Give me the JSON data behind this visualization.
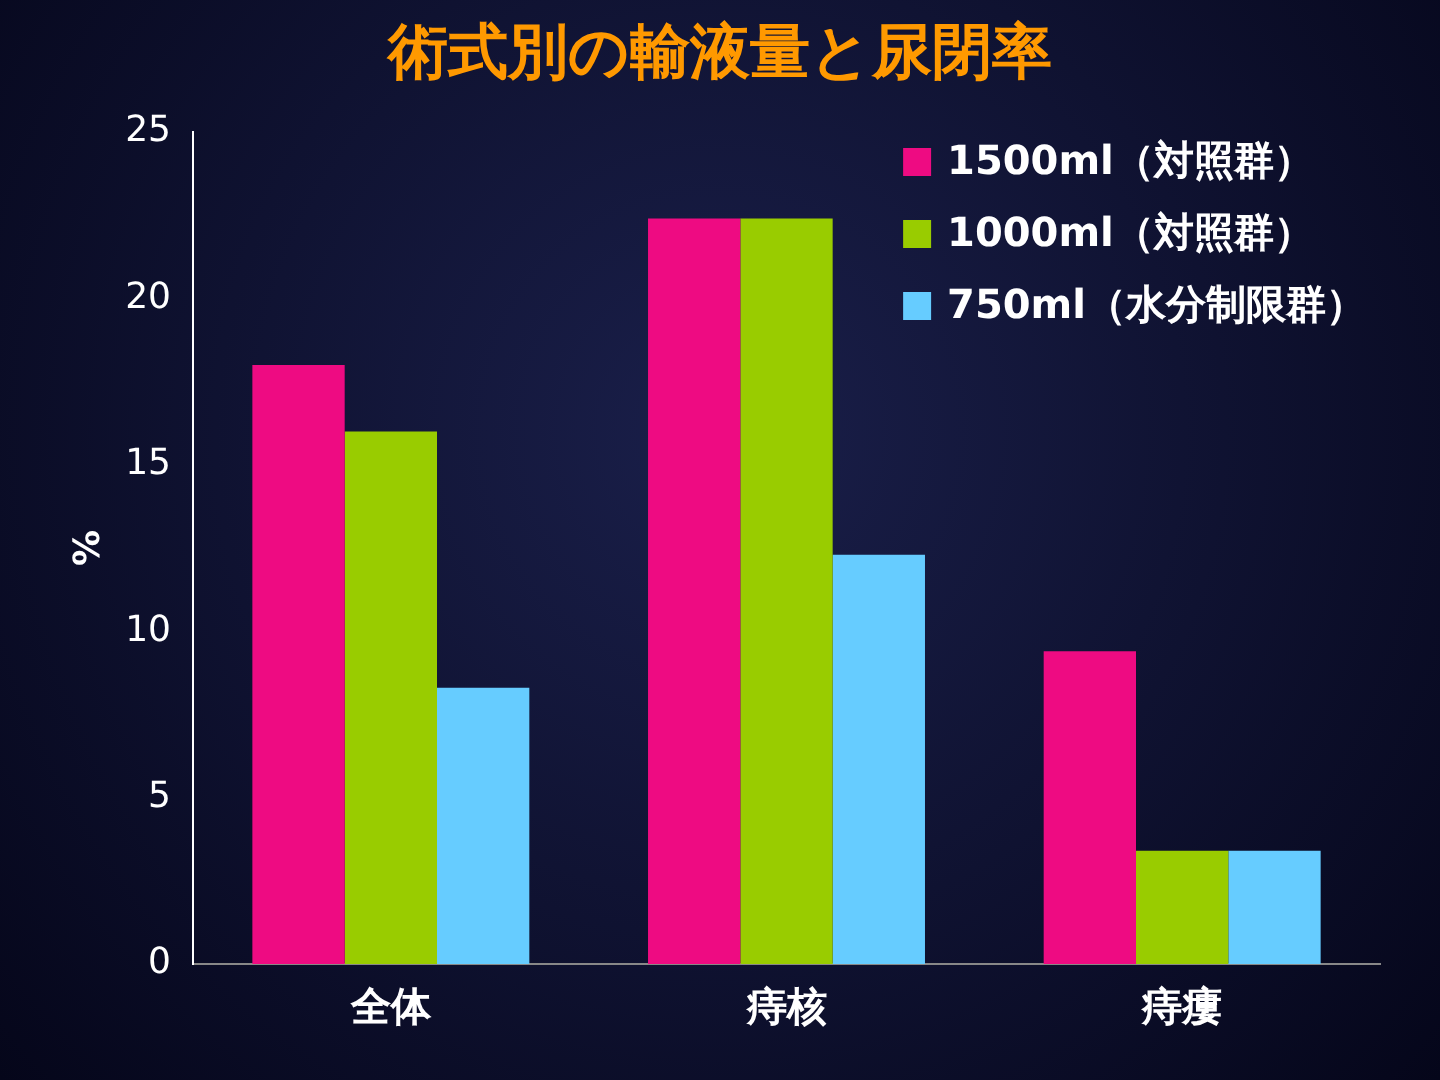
{
  "chart_data": {
    "type": "bar",
    "title": "術式別の輸液量と尿閉率",
    "ylabel": "%",
    "categories": [
      "全体",
      "痔核",
      "痔瘻"
    ],
    "series": [
      {
        "name": "1500ml（対照群）",
        "color": "#ee0b82",
        "values": [
          18,
          22.4,
          9.4
        ]
      },
      {
        "name": "1000ml（対照群）",
        "color": "#99cc00",
        "values": [
          16,
          22.4,
          3.4
        ]
      },
      {
        "name": "750ml（水分制限群）",
        "color": "#66ccff",
        "values": [
          8.3,
          12.3,
          3.4
        ]
      }
    ],
    "ylim": [
      0,
      25
    ],
    "yticks": [
      0,
      5,
      10,
      15,
      20,
      25
    ],
    "grid": false,
    "legend": "top right"
  }
}
